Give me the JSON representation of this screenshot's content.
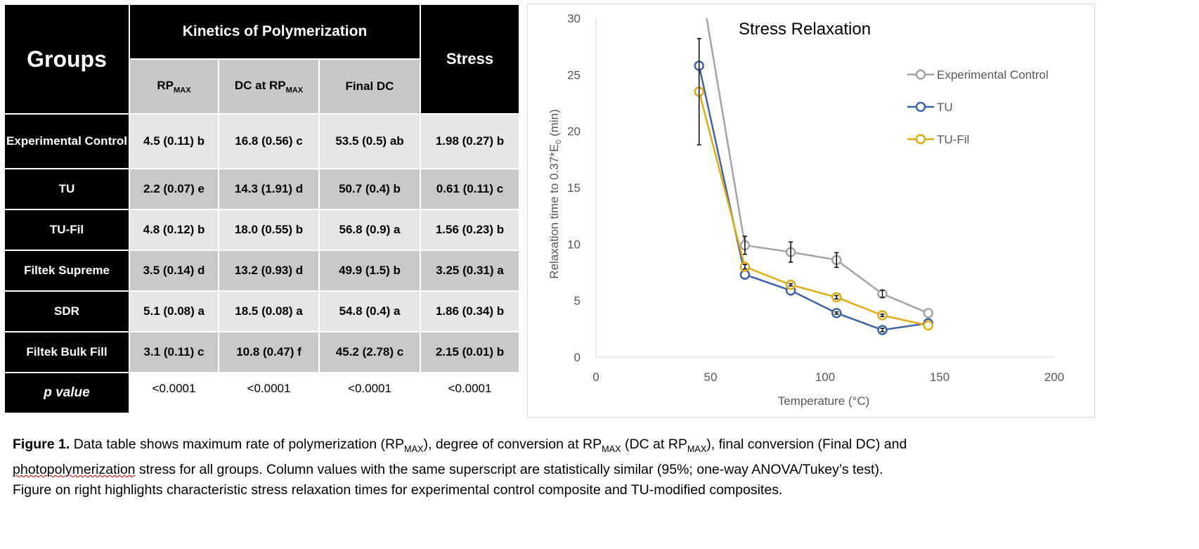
{
  "table": {
    "groups_header": "Groups",
    "kinetics_header": "Kinetics of Polymerization",
    "stress_header": "Stress",
    "sub_headers": {
      "rp": "RP",
      "rp_sub": "MAX",
      "dc_at": "DC at RP",
      "dc_at_sub": "MAX",
      "final": "Final DC"
    },
    "rows": [
      {
        "group": "Experimental Control",
        "rp": "4.5 (0.11) b",
        "dc": "16.8 (0.56) c",
        "final": "53.5 (0.5) ab",
        "stress": "1.98 (0.27) b"
      },
      {
        "group": "TU",
        "rp": "2.2 (0.07) e",
        "dc": "14.3 (1.91) d",
        "final": "50.7 (0.4) b",
        "stress": "0.61 (0.11) c"
      },
      {
        "group": "TU-Fil",
        "rp": "4.8 (0.12) b",
        "dc": "18.0 (0.55) b",
        "final": "56.8 (0.9) a",
        "stress": "1.56 (0.23) b"
      },
      {
        "group": "Filtek Supreme",
        "rp": "3.5 (0.14) d",
        "dc": "13.2 (0.93) d",
        "final": "49.9 (1.5) b",
        "stress": "3.25 (0.31) a"
      },
      {
        "group": "SDR",
        "rp": "5.1 (0.08) a",
        "dc": "18.5 (0.08) a",
        "final": "54.8 (0.4) a",
        "stress": "1.86 (0.34) b"
      },
      {
        "group": "Filtek Bulk Fill",
        "rp": "3.1 (0.11) c",
        "dc": "10.8 (0.47) f",
        "final": "45.2 (2.78) c",
        "stress": "2.15 (0.01) b"
      }
    ],
    "p_row": {
      "label": "p value",
      "rp": "<0.0001",
      "dc": "<0.0001",
      "final": "<0.0001",
      "stress": "<0.0001"
    }
  },
  "chart_data": {
    "type": "line",
    "title": "Stress Relaxation",
    "xlabel": "Temperature (°C)",
    "ylabel": "Relaxation time to 0.37*E",
    "ylabel_sub": "0",
    "ylabel_unit": " (min)",
    "xlim": [
      0,
      200
    ],
    "ylim": [
      0,
      30
    ],
    "xticks": [
      "0",
      "50",
      "100",
      "150",
      "200"
    ],
    "yticks": [
      "0",
      "5",
      "10",
      "15",
      "20",
      "25",
      "30"
    ],
    "grid": false,
    "legend_position": "right",
    "x": [
      45,
      65,
      85,
      105,
      125,
      145
    ],
    "series": [
      {
        "name": "Experimental Control",
        "color": "#a5a5a5",
        "values": [
          34,
          9.9,
          9.3,
          8.6,
          5.6,
          3.9
        ],
        "errors": [
          0,
          0.8,
          0.9,
          0.65,
          0.3,
          0
        ]
      },
      {
        "name": "TU",
        "color": "#3f62a8",
        "values": [
          25.8,
          7.3,
          5.9,
          3.9,
          2.4,
          3.0
        ],
        "errors": [
          0,
          0,
          0,
          0.1,
          0.15,
          0
        ]
      },
      {
        "name": "TU-Fil",
        "color": "#e0ac12",
        "values": [
          23.5,
          8.0,
          6.4,
          5.3,
          3.7,
          2.8
        ],
        "errors": [
          4.7,
          0.2,
          0.1,
          0.15,
          0.1,
          0
        ]
      }
    ]
  },
  "caption": {
    "label": "Figure 1.",
    "p1": " Data table shows maximum rate of polymerization (RP",
    "s1": "MAX",
    "p2": "), degree of conversion at RP",
    "s2": "MAX",
    "p3": " (DC at RP",
    "s3": "MAX",
    "p4": "), final conversion (Final DC) and",
    "p5": "photopolymerization",
    "p6": " stress for all groups. Column values with the same superscript are statistically similar (95%; one-way ANOVA/Tukey’s test).",
    "p7": "Figure on right highlights characteristic stress relaxation times for experimental control composite and TU-modified composites."
  }
}
